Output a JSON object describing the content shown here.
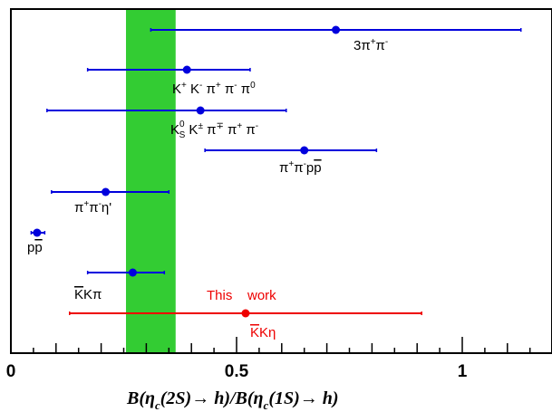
{
  "chart_data": {
    "type": "scatter",
    "title": "",
    "xlabel": "B(η_c(2S)→h)/B(η_c(1S)→h)",
    "ylabel": "",
    "xlim": [
      0,
      1.2
    ],
    "x_ticks": [
      "0",
      "0.5",
      "1"
    ],
    "grid": false,
    "band": {
      "from": 0.255,
      "to": 0.365,
      "color": "#33cc33"
    },
    "points": [
      {
        "label": "3π⁺π⁻",
        "value": 0.72,
        "low": 0.31,
        "high": 1.13,
        "color": "#0000dd"
      },
      {
        "label": "K⁺ K⁻ π⁺ π⁻ π⁰",
        "value": 0.39,
        "low": 0.17,
        "high": 0.53,
        "color": "#0000dd"
      },
      {
        "label": "K⁰_S K^± π^∓ π⁺ π⁻",
        "value": 0.42,
        "low": 0.08,
        "high": 0.61,
        "color": "#0000dd"
      },
      {
        "label": "π⁺π⁻pp̄",
        "value": 0.65,
        "low": 0.43,
        "high": 0.81,
        "color": "#0000dd"
      },
      {
        "label": "π⁺π⁻η'",
        "value": 0.21,
        "low": 0.09,
        "high": 0.35,
        "color": "#0000dd"
      },
      {
        "label": "pp̄",
        "value": 0.058,
        "low": 0.045,
        "high": 0.075,
        "color": "#0000dd"
      },
      {
        "label": "K̄Kπ",
        "value": 0.27,
        "low": 0.17,
        "high": 0.34,
        "color": "#0000dd"
      },
      {
        "label": "K̄Kη",
        "value": 0.52,
        "low": 0.13,
        "high": 0.91,
        "color": "#ee0000"
      }
    ],
    "annotations": [
      {
        "text": "This    work",
        "color": "#ee0000"
      }
    ]
  }
}
